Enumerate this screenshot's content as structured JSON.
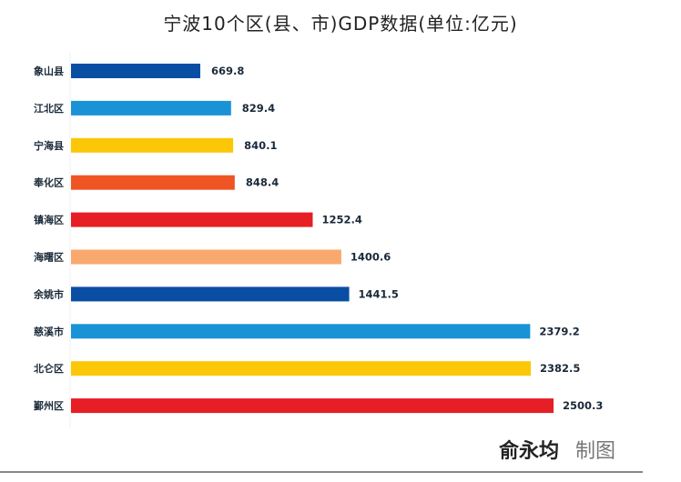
{
  "chart_data": {
    "type": "bar",
    "orientation": "horizontal",
    "title": "宁波10个区(县、市)GDP数据(单位:亿元)",
    "categories": [
      "象山县",
      "江北区",
      "宁海县",
      "奉化区",
      "镇海区",
      "海曙区",
      "余姚市",
      "慈溪市",
      "北仑区",
      "鄞州区"
    ],
    "values": [
      669.8,
      829.4,
      840.1,
      848.4,
      1252.4,
      1400.6,
      1441.5,
      2379.2,
      2382.5,
      2500.3
    ],
    "labels": [
      "669.8",
      "829.4",
      "840.1",
      "848.4",
      "1252.4",
      "1400.6",
      "1441.5",
      "2379.2",
      "2382.5",
      "2500.3"
    ],
    "colors": [
      "#0a4ea3",
      "#1a93d6",
      "#fbc707",
      "#ef5524",
      "#e61e25",
      "#f9a96e",
      "#0a4ea3",
      "#1a93d6",
      "#fbc707",
      "#e61e25"
    ],
    "xlim": [
      0,
      2500.3
    ],
    "grid": false,
    "legend": "none"
  },
  "credit": {
    "author": "俞永均",
    "role": "制图"
  }
}
